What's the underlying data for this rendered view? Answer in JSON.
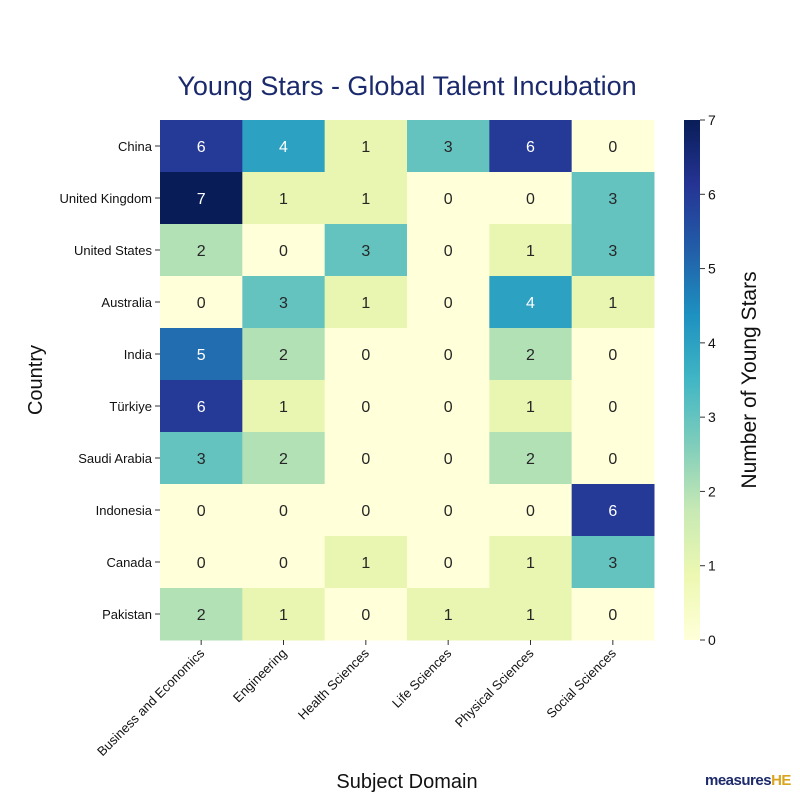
{
  "chart_data": {
    "type": "heatmap",
    "title": "Young Stars - Global Talent Incubation",
    "xlabel": "Subject Domain",
    "ylabel": "Country",
    "colorbar_label": "Number of Young Stars",
    "colormap": "YlGnBu",
    "colorbar_range": [
      0,
      7
    ],
    "colorbar_ticks": [
      "0",
      "1",
      "2",
      "3",
      "4",
      "5",
      "6",
      "7"
    ],
    "x_categories": [
      "Business and Economics",
      "Engineering",
      "Health Sciences",
      "Life Sciences",
      "Physical Sciences",
      "Social Sciences"
    ],
    "y_categories": [
      "China",
      "United Kingdom",
      "United States",
      "Australia",
      "India",
      "Türkiye",
      "Saudi Arabia",
      "Indonesia",
      "Canada",
      "Pakistan"
    ],
    "values": [
      [
        6,
        4,
        1,
        3,
        6,
        0
      ],
      [
        7,
        1,
        1,
        0,
        0,
        3
      ],
      [
        2,
        0,
        3,
        0,
        1,
        3
      ],
      [
        0,
        3,
        1,
        0,
        4,
        1
      ],
      [
        5,
        2,
        0,
        0,
        2,
        0
      ],
      [
        6,
        1,
        0,
        0,
        1,
        0
      ],
      [
        3,
        2,
        0,
        0,
        2,
        0
      ],
      [
        0,
        0,
        0,
        0,
        0,
        6
      ],
      [
        0,
        0,
        1,
        0,
        1,
        3
      ],
      [
        2,
        1,
        0,
        1,
        1,
        0
      ]
    ],
    "annotations": true
  },
  "colors": {
    "title": "#1a2a6c",
    "logo_main": "#1d2a6b",
    "logo_accent": "#d9a520"
  },
  "logo": {
    "main": "measures",
    "accent": "HE"
  }
}
